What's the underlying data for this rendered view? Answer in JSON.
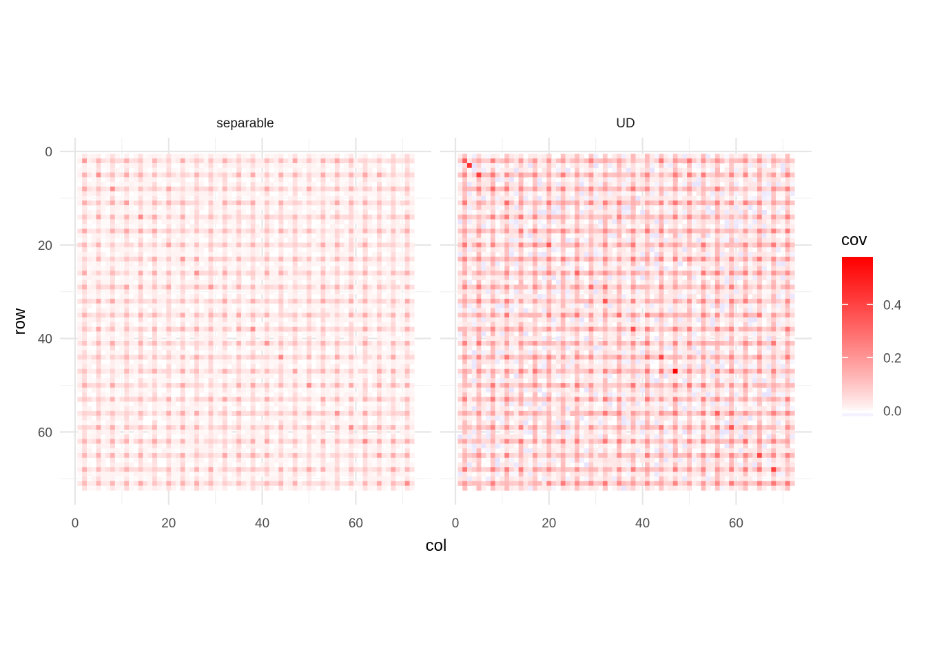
{
  "chart_data": {
    "type": "heatmap",
    "title": "",
    "xlabel": "col",
    "ylabel": "row",
    "xlim": [
      0,
      72
    ],
    "ylim": [
      0,
      72
    ],
    "y_reversed": true,
    "x_ticks": [
      0,
      20,
      40,
      60
    ],
    "y_ticks": [
      0,
      20,
      40,
      60
    ],
    "grid": true,
    "grid_size": {
      "rows": 72,
      "cols": 72
    },
    "pattern_note_period": 3,
    "panels": [
      {
        "name": "separable",
        "diagonal_value": 0.2,
        "lattice_value": 0.12,
        "line_value": 0.04,
        "background_value": 0.01,
        "highlights": []
      },
      {
        "name": "UD",
        "diagonal_value": 0.3,
        "lattice_value": 0.2,
        "line_value": 0.08,
        "background_value": 0.03,
        "highlights": [
          {
            "row": 47,
            "col": 47,
            "value": 0.58
          },
          {
            "row": 3,
            "col": 3,
            "value": 0.45
          },
          {
            "row": 5,
            "col": 5,
            "value": 0.42
          },
          {
            "row": 44,
            "col": 44,
            "value": 0.4
          },
          {
            "row": 65,
            "col": 65,
            "value": 0.4
          },
          {
            "row": 68,
            "col": 68,
            "value": 0.42
          },
          {
            "row": 38,
            "col": 38,
            "value": 0.38
          },
          {
            "row": 32,
            "col": 32,
            "value": 0.36
          },
          {
            "row": 56,
            "col": 56,
            "value": 0.33
          },
          {
            "row": 20,
            "col": 20,
            "value": 0.35
          }
        ]
      }
    ],
    "legend": {
      "title": "cov",
      "placement": "right",
      "min": -0.02,
      "max": 0.58,
      "ticks": [
        0.0,
        0.2,
        0.4
      ],
      "tick_labels": [
        "0.0",
        "0.2",
        "0.4"
      ],
      "colors": {
        "low": "#e8e4ff",
        "mid": "#ffffff",
        "high": "#ff0000"
      }
    }
  }
}
